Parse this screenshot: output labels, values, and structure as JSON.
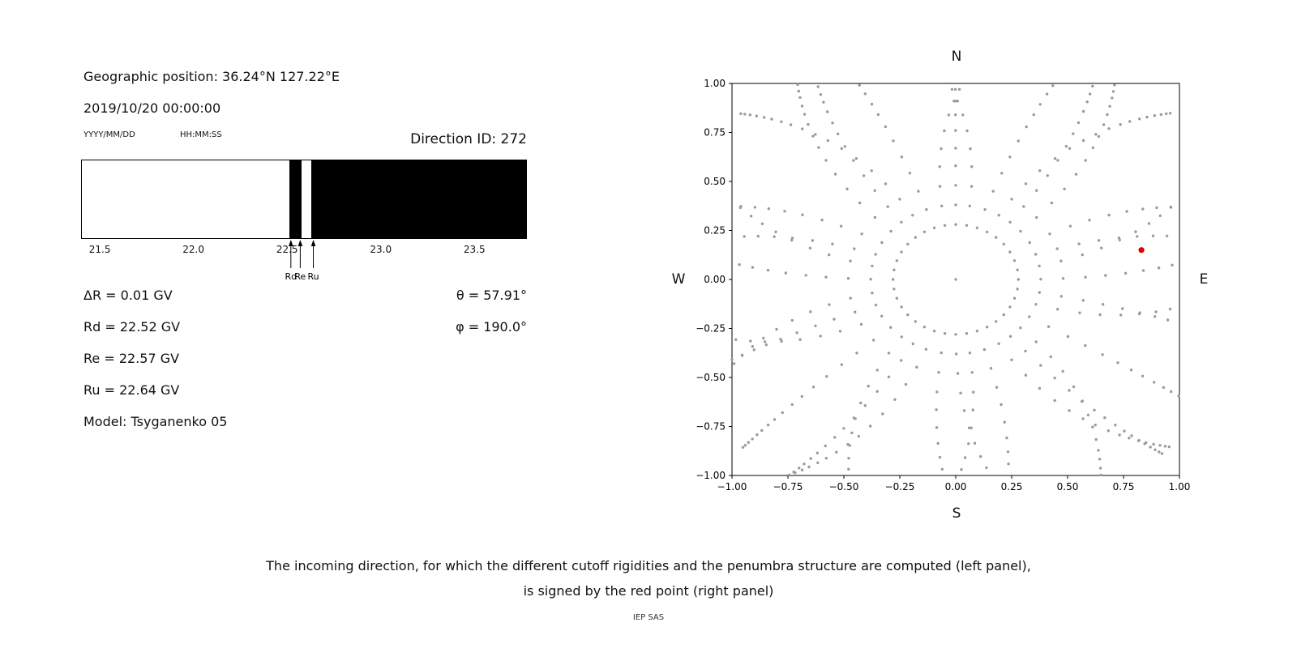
{
  "left_panel": {
    "geographic_position": "Geographic position: 36.24°N 127.22°E",
    "datetime": "2019/10/20 00:00:00",
    "date_format_label": "YYYY/MM/DD",
    "time_format_label": "HH:MM:SS",
    "direction_id": "Direction ID: 272",
    "info_lines": {
      "delta_r": "ΔR = 0.01 GV",
      "rd": "Rd = 22.52 GV",
      "re": "Re = 22.57 GV",
      "ru": "Ru = 22.64 GV",
      "model": "Model: Tsyganenko 05"
    },
    "theta": "θ = 57.91°",
    "phi": "φ = 190.0°"
  },
  "right_panel": {
    "labels": {
      "north": "N",
      "south": "S",
      "west": "W",
      "east": "E"
    }
  },
  "caption": {
    "line1": "The incoming direction, for which the different cutoff rigidities and the penumbra structure are computed (left panel),",
    "line2": "is signed by the red point (right panel)",
    "credit": "IEP SAS"
  },
  "chart_data": [
    {
      "type": "area",
      "name": "penumbra-structure",
      "xlim": [
        21.4,
        23.78
      ],
      "xticks": [
        21.5,
        22.0,
        22.5,
        23.0,
        23.5
      ],
      "xtick_labels": [
        "21.5",
        "22.0",
        "22.5",
        "23.0",
        "23.5"
      ],
      "forbidden_segments_gv": [
        [
          22.51,
          22.575
        ],
        [
          22.63,
          23.78
        ]
      ],
      "bar_color": "#000000",
      "background": "#ffffff",
      "markers": [
        {
          "label": "Rd",
          "value": 22.52
        },
        {
          "label": "Re",
          "value": 22.57
        },
        {
          "label": "Ru",
          "value": 22.64
        }
      ]
    },
    {
      "type": "scatter",
      "name": "asymptotic-directions",
      "xlim": [
        -1,
        1
      ],
      "ylim": [
        -1,
        1
      ],
      "xticks": [
        -1,
        -0.75,
        -0.5,
        -0.25,
        0,
        0.25,
        0.5,
        0.75,
        1
      ],
      "xtick_labels": [
        "−1.00",
        "−0.75",
        "−0.50",
        "−0.25",
        "0.00",
        "0.25",
        "0.50",
        "0.75",
        "1.00"
      ],
      "yticks": [
        -1,
        -0.75,
        -0.5,
        -0.25,
        0,
        0.25,
        0.5,
        0.75,
        1
      ],
      "ytick_labels": [
        "−1.00",
        "−0.75",
        "−0.50",
        "−0.25",
        "0.00",
        "0.25",
        "0.50",
        "0.75",
        "1.00"
      ],
      "compass": {
        "top": "N",
        "bottom": "S",
        "left": "W",
        "right": "E"
      },
      "spokes": 36,
      "spoke_radii": [
        0.28,
        0.38,
        0.48,
        0.58,
        0.67,
        0.76,
        0.84,
        0.91,
        0.97,
        1.03,
        1.08,
        1.12,
        1.16,
        1.19,
        1.22,
        1.245,
        1.265,
        1.28
      ],
      "curl_amp": 0.35,
      "dot_color": "#9a9a9a",
      "dot_radius_px": 1.7,
      "center_dot": true,
      "red_point": {
        "x": 0.83,
        "y": 0.15,
        "color": "#e00000",
        "radius_px": 3.6
      }
    }
  ]
}
